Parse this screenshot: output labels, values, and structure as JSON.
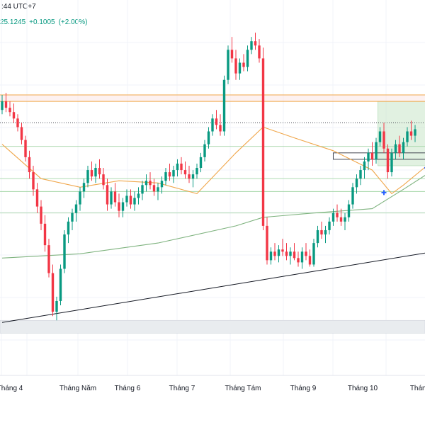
{
  "header": {
    "time_text": ":44 UTC+7",
    "last_price": "25.1245",
    "change": "+0.1005",
    "change_pct": "(+2.00%)"
  },
  "colors": {
    "up": "#089981",
    "down": "#f23645",
    "ma_fast": "#f0a64a",
    "ma_slow": "#7fb37f",
    "resistance": "#f0a64a",
    "trendline": "#131722",
    "support_zone": "#e9ecef",
    "demand_zone": "#c8e6c9",
    "marker": "#2962ff"
  },
  "chart_data": {
    "type": "candlestick",
    "x_axis_ticks": [
      "Tháng 4",
      "Tháng Năm",
      "Tháng 6",
      "Tháng 7",
      "Tháng Tám",
      "Tháng 9",
      "Tháng 10",
      "Tháng"
    ],
    "ylim": [
      2.0,
      18.0
    ],
    "price_axis_visible": false,
    "grid": true,
    "candles": [
      [
        14.2,
        14.9,
        14.0,
        14.6
      ],
      [
        14.6,
        15.0,
        14.1,
        14.3
      ],
      [
        14.3,
        14.6,
        13.9,
        14.1
      ],
      [
        14.1,
        14.5,
        13.6,
        13.8
      ],
      [
        13.8,
        14.0,
        13.2,
        13.4
      ],
      [
        13.4,
        13.6,
        12.6,
        12.8
      ],
      [
        12.8,
        13.0,
        11.8,
        12.0
      ],
      [
        12.0,
        12.3,
        11.0,
        11.3
      ],
      [
        11.3,
        11.6,
        10.2,
        10.5
      ],
      [
        10.5,
        10.8,
        9.4,
        9.7
      ],
      [
        9.7,
        10.0,
        8.6,
        8.9
      ],
      [
        8.9,
        9.3,
        7.6,
        7.9
      ],
      [
        7.9,
        8.2,
        6.4,
        6.6
      ],
      [
        6.6,
        7.0,
        4.6,
        4.8
      ],
      [
        4.8,
        5.5,
        4.4,
        5.3
      ],
      [
        5.3,
        7.0,
        5.1,
        6.8
      ],
      [
        6.8,
        8.6,
        6.6,
        8.4
      ],
      [
        8.4,
        9.2,
        8.0,
        9.0
      ],
      [
        9.0,
        9.6,
        8.6,
        9.4
      ],
      [
        9.4,
        10.0,
        9.0,
        9.8
      ],
      [
        9.8,
        10.6,
        9.5,
        10.4
      ],
      [
        10.4,
        11.0,
        10.1,
        10.8
      ],
      [
        10.8,
        11.6,
        10.6,
        11.4
      ],
      [
        11.4,
        11.8,
        10.9,
        11.1
      ],
      [
        11.1,
        11.7,
        10.8,
        11.5
      ],
      [
        11.5,
        11.9,
        11.0,
        11.2
      ],
      [
        11.2,
        11.5,
        10.5,
        10.7
      ],
      [
        10.7,
        11.0,
        9.5,
        9.8
      ],
      [
        9.8,
        10.6,
        9.6,
        10.4
      ],
      [
        10.4,
        10.8,
        9.7,
        9.9
      ],
      [
        9.9,
        10.3,
        9.2,
        9.5
      ],
      [
        9.5,
        10.1,
        9.2,
        9.9
      ],
      [
        9.9,
        10.5,
        9.7,
        10.2
      ],
      [
        10.2,
        10.5,
        9.6,
        9.8
      ],
      [
        9.8,
        10.4,
        9.5,
        10.1
      ],
      [
        10.1,
        10.6,
        9.8,
        10.3
      ],
      [
        10.3,
        10.9,
        10.0,
        10.7
      ],
      [
        10.7,
        11.2,
        10.4,
        10.9
      ],
      [
        10.9,
        11.3,
        10.5,
        10.7
      ],
      [
        10.7,
        11.0,
        10.2,
        10.4
      ],
      [
        10.4,
        10.8,
        10.0,
        10.6
      ],
      [
        10.6,
        11.1,
        10.3,
        10.9
      ],
      [
        10.9,
        11.5,
        10.7,
        11.3
      ],
      [
        11.3,
        11.7,
        10.9,
        11.1
      ],
      [
        11.1,
        11.6,
        10.8,
        11.4
      ],
      [
        11.4,
        11.9,
        11.1,
        11.7
      ],
      [
        11.7,
        12.0,
        11.2,
        11.4
      ],
      [
        11.4,
        11.8,
        11.0,
        11.2
      ],
      [
        11.2,
        11.6,
        10.8,
        11.0
      ],
      [
        11.0,
        11.4,
        10.6,
        11.2
      ],
      [
        11.2,
        11.7,
        11.0,
        11.5
      ],
      [
        11.5,
        12.2,
        11.3,
        12.0
      ],
      [
        12.0,
        12.8,
        11.8,
        12.6
      ],
      [
        12.6,
        13.4,
        12.4,
        13.2
      ],
      [
        13.2,
        14.0,
        13.0,
        13.8
      ],
      [
        13.8,
        14.2,
        13.3,
        13.5
      ],
      [
        13.5,
        14.0,
        13.0,
        13.2
      ],
      [
        13.2,
        15.8,
        13.0,
        15.6
      ],
      [
        15.6,
        17.2,
        15.4,
        17.0
      ],
      [
        17.0,
        17.6,
        16.4,
        16.6
      ],
      [
        16.6,
        17.0,
        15.6,
        15.9
      ],
      [
        15.9,
        16.6,
        15.6,
        16.4
      ],
      [
        16.4,
        16.8,
        16.0,
        16.2
      ],
      [
        16.2,
        17.2,
        16.0,
        17.0
      ],
      [
        17.0,
        17.6,
        16.8,
        17.4
      ],
      [
        17.4,
        17.8,
        17.0,
        17.2
      ],
      [
        17.2,
        17.5,
        16.4,
        16.6
      ],
      [
        16.6,
        17.1,
        8.6,
        8.8
      ],
      [
        8.8,
        9.2,
        7.0,
        7.2
      ],
      [
        7.2,
        7.8,
        7.0,
        7.6
      ],
      [
        7.6,
        8.0,
        7.2,
        7.4
      ],
      [
        7.4,
        7.9,
        7.1,
        7.7
      ],
      [
        7.7,
        8.2,
        7.4,
        7.6
      ],
      [
        7.6,
        8.0,
        7.2,
        7.4
      ],
      [
        7.4,
        7.8,
        7.0,
        7.6
      ],
      [
        7.6,
        8.0,
        7.2,
        7.3
      ],
      [
        7.3,
        7.6,
        6.9,
        7.1
      ],
      [
        7.1,
        7.8,
        6.8,
        7.6
      ],
      [
        7.6,
        8.0,
        7.2,
        7.4
      ],
      [
        7.4,
        7.7,
        6.9,
        7.0
      ],
      [
        7.0,
        8.2,
        6.9,
        8.0
      ],
      [
        8.0,
        8.8,
        7.8,
        8.6
      ],
      [
        8.6,
        9.0,
        8.2,
        8.4
      ],
      [
        8.4,
        8.8,
        8.0,
        8.6
      ],
      [
        8.6,
        9.2,
        8.4,
        9.0
      ],
      [
        9.0,
        9.6,
        8.8,
        9.4
      ],
      [
        9.4,
        9.8,
        9.0,
        9.2
      ],
      [
        9.2,
        9.6,
        8.8,
        9.0
      ],
      [
        9.0,
        9.4,
        8.6,
        9.2
      ],
      [
        9.2,
        10.0,
        9.0,
        9.8
      ],
      [
        9.8,
        10.8,
        9.6,
        10.6
      ],
      [
        10.6,
        11.2,
        10.3,
        11.0
      ],
      [
        11.0,
        11.6,
        10.7,
        11.4
      ],
      [
        11.4,
        12.0,
        11.0,
        11.8
      ],
      [
        11.8,
        12.4,
        11.4,
        12.2
      ],
      [
        12.2,
        12.7,
        11.6,
        11.9
      ],
      [
        11.9,
        12.9,
        11.7,
        12.7
      ],
      [
        12.7,
        13.4,
        12.5,
        13.2
      ],
      [
        13.2,
        13.6,
        12.2,
        12.4
      ],
      [
        12.4,
        12.6,
        11.0,
        11.3
      ],
      [
        11.3,
        12.4,
        11.1,
        12.2
      ],
      [
        12.2,
        12.8,
        11.9,
        12.6
      ],
      [
        12.6,
        13.0,
        12.0,
        12.2
      ],
      [
        12.2,
        12.9,
        11.9,
        12.7
      ],
      [
        12.7,
        13.4,
        12.5,
        13.2
      ],
      [
        13.2,
        13.7,
        12.8,
        13.0
      ],
      [
        13.0,
        13.5,
        12.7,
        13.3
      ]
    ],
    "ma_fast": [
      [
        0,
        12.6
      ],
      [
        10,
        11.0
      ],
      [
        20,
        10.6
      ],
      [
        30,
        10.9
      ],
      [
        40,
        10.8
      ],
      [
        50,
        10.3
      ],
      [
        60,
        12.2
      ],
      [
        67,
        13.4
      ],
      [
        75,
        12.9
      ],
      [
        85,
        12.3
      ],
      [
        95,
        11.4
      ],
      [
        100,
        10.3
      ],
      [
        103,
        10.7
      ],
      [
        109,
        11.6
      ]
    ],
    "ma_slow": [
      [
        0,
        7.3
      ],
      [
        20,
        7.5
      ],
      [
        40,
        8.0
      ],
      [
        60,
        8.8
      ],
      [
        67,
        9.2
      ],
      [
        80,
        9.4
      ],
      [
        95,
        9.6
      ],
      [
        103,
        10.5
      ],
      [
        109,
        11.2
      ]
    ],
    "trendline": [
      [
        0,
        4.3
      ],
      [
        109,
        7.6
      ]
    ],
    "resistance_levels": [
      14.9,
      14.6
    ],
    "dotted_level": 13.6,
    "horizontal_levels": [
      12.5,
      11.0,
      10.4,
      9.4
    ],
    "support_zone": [
      3.8,
      4.4
    ],
    "consolidation_box": [
      97,
      109,
      11.6,
      14.6
    ],
    "range_box": [
      85,
      109,
      11.9,
      12.2
    ],
    "markers": [
      [
        98,
        10.35
      ],
      [
        109,
        11.5
      ]
    ]
  }
}
